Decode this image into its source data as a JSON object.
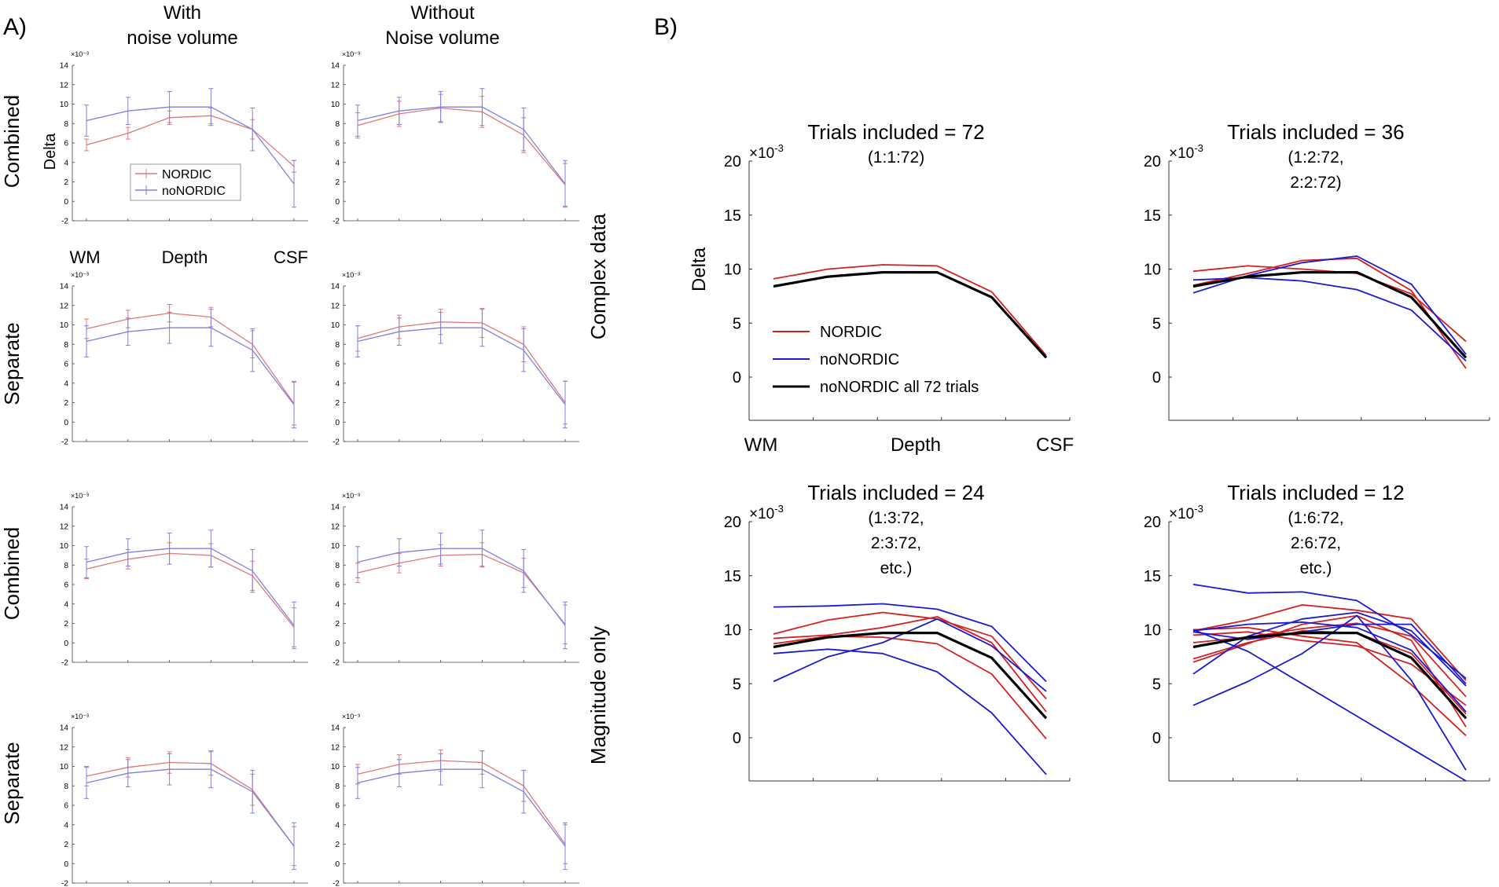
{
  "panel_a": {
    "label": "A)",
    "col_headers": [
      [
        "With",
        "noise volume"
      ],
      [
        "Without",
        "Noise volume"
      ]
    ],
    "row_labels": [
      "Combined",
      "Separate",
      "Combined",
      "Separate"
    ],
    "side_labels": [
      "Complex data",
      "Magnitude only"
    ],
    "ylabel": "Delta",
    "x_axis_labels": [
      "WM",
      "Depth",
      "CSF"
    ],
    "exponent_label": "×10⁻³",
    "legend": [
      "NORDIC",
      "noNORDIC"
    ]
  },
  "panel_b": {
    "label": "B)",
    "ylabel": "Delta",
    "x_axis_labels": [
      "WM",
      "Depth",
      "CSF"
    ],
    "exponent_label": "×10",
    "exponent_power": "-3",
    "legend": [
      "NORDIC",
      "noNORDIC",
      "noNORDIC all 72 trials"
    ]
  },
  "colors": {
    "nordic": "#d42020",
    "nonordic": "#1a1ad0",
    "reference": "#000000",
    "nordic_light": "#e07878",
    "nonordic_light": "#8080e0"
  },
  "chart_data": [
    {
      "type": "line",
      "panel": "A",
      "row": "Combined",
      "column": "With noise volume",
      "data": "Complex data",
      "x": [
        1,
        2,
        3,
        4,
        5,
        6
      ],
      "ylim": [
        -2,
        14
      ],
      "yticks": [
        -2,
        0,
        2,
        4,
        6,
        8,
        10,
        12,
        14
      ],
      "series": [
        {
          "name": "NORDIC",
          "values": [
            5.8,
            7.0,
            8.6,
            8.8,
            7.4,
            3.6
          ],
          "errors": [
            0.6,
            0.6,
            0.7,
            0.8,
            1.0,
            0.6
          ]
        },
        {
          "name": "noNORDIC",
          "values": [
            8.3,
            9.3,
            9.7,
            9.7,
            7.4,
            1.8
          ],
          "errors": [
            1.6,
            1.4,
            1.6,
            1.9,
            2.2,
            2.4
          ]
        }
      ]
    },
    {
      "type": "line",
      "panel": "A",
      "row": "Combined",
      "column": "Without Noise volume",
      "data": "Complex data",
      "x": [
        1,
        2,
        3,
        4,
        5,
        6
      ],
      "ylim": [
        -2,
        14
      ],
      "yticks": [
        -2,
        0,
        2,
        4,
        6,
        8,
        10,
        12,
        14
      ],
      "series": [
        {
          "name": "NORDIC",
          "values": [
            7.8,
            9.0,
            9.6,
            9.2,
            6.8,
            1.7
          ],
          "errors": [
            1.3,
            1.3,
            1.4,
            1.6,
            1.8,
            2.2
          ]
        },
        {
          "name": "noNORDIC",
          "values": [
            8.3,
            9.3,
            9.7,
            9.7,
            7.4,
            1.8
          ],
          "errors": [
            1.6,
            1.4,
            1.6,
            1.9,
            2.2,
            2.4
          ]
        }
      ]
    },
    {
      "type": "line",
      "panel": "A",
      "row": "Separate",
      "column": "With noise volume",
      "data": "Complex data",
      "x": [
        1,
        2,
        3,
        4,
        5,
        6
      ],
      "ylim": [
        -2,
        14
      ],
      "yticks": [
        -2,
        0,
        2,
        4,
        6,
        8,
        10,
        12,
        14
      ],
      "series": [
        {
          "name": "NORDIC",
          "values": [
            9.6,
            10.6,
            11.2,
            10.8,
            8.0,
            1.9
          ],
          "errors": [
            1.0,
            0.9,
            0.9,
            1.0,
            1.4,
            2.2
          ]
        },
        {
          "name": "noNORDIC",
          "values": [
            8.3,
            9.3,
            9.7,
            9.7,
            7.4,
            1.8
          ],
          "errors": [
            1.6,
            1.4,
            1.6,
            1.9,
            2.2,
            2.4
          ]
        }
      ]
    },
    {
      "type": "line",
      "panel": "A",
      "row": "Separate",
      "column": "Without Noise volume",
      "data": "Complex data",
      "x": [
        1,
        2,
        3,
        4,
        5,
        6
      ],
      "ylim": [
        -2,
        14
      ],
      "yticks": [
        -2,
        0,
        2,
        4,
        6,
        8,
        10,
        12,
        14
      ],
      "series": [
        {
          "name": "NORDIC",
          "values": [
            8.6,
            9.8,
            10.3,
            10.2,
            8.0,
            2.0
          ],
          "errors": [
            1.3,
            1.2,
            1.3,
            1.5,
            1.8,
            2.2
          ]
        },
        {
          "name": "noNORDIC",
          "values": [
            8.3,
            9.3,
            9.7,
            9.7,
            7.4,
            1.8
          ],
          "errors": [
            1.6,
            1.4,
            1.6,
            1.9,
            2.2,
            2.4
          ]
        }
      ]
    },
    {
      "type": "line",
      "panel": "A",
      "row": "Combined",
      "column": "With noise volume",
      "data": "Magnitude only",
      "x": [
        1,
        2,
        3,
        4,
        5,
        6
      ],
      "ylim": [
        -2,
        14
      ],
      "yticks": [
        -2,
        0,
        2,
        4,
        6,
        8,
        10,
        12,
        14
      ],
      "series": [
        {
          "name": "NORDIC",
          "values": [
            7.6,
            8.6,
            9.2,
            9.0,
            6.9,
            1.6
          ],
          "errors": [
            1.0,
            1.0,
            1.1,
            1.2,
            1.5,
            2.0
          ]
        },
        {
          "name": "noNORDIC",
          "values": [
            8.3,
            9.3,
            9.7,
            9.7,
            7.4,
            1.8
          ],
          "errors": [
            1.6,
            1.4,
            1.6,
            1.9,
            2.2,
            2.4
          ]
        }
      ]
    },
    {
      "type": "line",
      "panel": "A",
      "row": "Combined",
      "column": "Without Noise volume",
      "data": "Magnitude only",
      "x": [
        1,
        2,
        3,
        4,
        5,
        6
      ],
      "ylim": [
        -2,
        14
      ],
      "yticks": [
        -2,
        0,
        2,
        4,
        6,
        8,
        10,
        12,
        14
      ],
      "series": [
        {
          "name": "NORDIC",
          "values": [
            7.2,
            8.2,
            9.0,
            9.1,
            7.2,
            1.9
          ],
          "errors": [
            1.0,
            1.0,
            1.1,
            1.2,
            1.5,
            2.0
          ]
        },
        {
          "name": "noNORDIC",
          "values": [
            8.3,
            9.3,
            9.7,
            9.7,
            7.4,
            1.8
          ],
          "errors": [
            1.6,
            1.4,
            1.6,
            1.9,
            2.2,
            2.4
          ]
        }
      ]
    },
    {
      "type": "line",
      "panel": "A",
      "row": "Separate",
      "column": "With noise volume",
      "data": "Magnitude only",
      "x": [
        1,
        2,
        3,
        4,
        5,
        6
      ],
      "ylim": [
        -2,
        14
      ],
      "yticks": [
        -2,
        0,
        2,
        4,
        6,
        8,
        10,
        12,
        14
      ],
      "series": [
        {
          "name": "NORDIC",
          "values": [
            9.0,
            9.9,
            10.4,
            10.3,
            7.6,
            1.8
          ],
          "errors": [
            1.0,
            1.0,
            1.1,
            1.2,
            1.6,
            2.0
          ]
        },
        {
          "name": "noNORDIC",
          "values": [
            8.3,
            9.3,
            9.7,
            9.7,
            7.4,
            1.8
          ],
          "errors": [
            1.6,
            1.4,
            1.6,
            1.9,
            2.2,
            2.4
          ]
        }
      ]
    },
    {
      "type": "line",
      "panel": "A",
      "row": "Separate",
      "column": "Without Noise volume",
      "data": "Magnitude only",
      "x": [
        1,
        2,
        3,
        4,
        5,
        6
      ],
      "ylim": [
        -2,
        14
      ],
      "yticks": [
        -2,
        0,
        2,
        4,
        6,
        8,
        10,
        12,
        14
      ],
      "series": [
        {
          "name": "NORDIC",
          "values": [
            9.2,
            10.2,
            10.6,
            10.4,
            8.0,
            2.0
          ],
          "errors": [
            1.0,
            1.0,
            1.1,
            1.2,
            1.6,
            2.0
          ]
        },
        {
          "name": "noNORDIC",
          "values": [
            8.3,
            9.3,
            9.7,
            9.7,
            7.4,
            1.8
          ],
          "errors": [
            1.6,
            1.4,
            1.6,
            1.9,
            2.2,
            2.4
          ]
        }
      ]
    },
    {
      "type": "line",
      "panel": "B",
      "title": "Trials included = 72",
      "subtitle": [
        "(1:1:72)"
      ],
      "x": [
        1,
        2,
        3,
        4,
        5,
        6
      ],
      "ylim": [
        -4,
        20
      ],
      "yticks": [
        0,
        5,
        10,
        15,
        20
      ],
      "series": [
        {
          "name": "NORDIC",
          "color": "nordic",
          "values": [
            9.1,
            10.0,
            10.4,
            10.3,
            7.9,
            2.0
          ]
        },
        {
          "name": "noNORDIC all 72 trials",
          "color": "reference",
          "values": [
            8.4,
            9.3,
            9.7,
            9.7,
            7.4,
            1.8
          ]
        }
      ]
    },
    {
      "type": "line",
      "panel": "B",
      "title": "Trials included = 36",
      "subtitle": [
        "(1:2:72,",
        "2:2:72)"
      ],
      "x": [
        1,
        2,
        3,
        4,
        5,
        6
      ],
      "ylim": [
        -4,
        20
      ],
      "yticks": [
        0,
        5,
        10,
        15,
        20
      ],
      "series": [
        {
          "name": "NORDIC",
          "color": "nordic",
          "values": [
            9.8,
            10.3,
            10.0,
            9.6,
            7.7,
            3.3
          ]
        },
        {
          "name": "NORDIC",
          "color": "nordic",
          "values": [
            8.5,
            9.6,
            10.8,
            11.0,
            8.0,
            0.8
          ]
        },
        {
          "name": "noNORDIC",
          "color": "nonordic",
          "values": [
            9.0,
            9.2,
            8.9,
            8.1,
            6.2,
            1.5
          ]
        },
        {
          "name": "noNORDIC",
          "color": "nonordic",
          "values": [
            7.8,
            9.4,
            10.6,
            11.2,
            8.6,
            2.1
          ]
        },
        {
          "name": "noNORDIC all 72 trials",
          "color": "reference",
          "values": [
            8.4,
            9.3,
            9.7,
            9.7,
            7.4,
            1.8
          ]
        }
      ]
    },
    {
      "type": "line",
      "panel": "B",
      "title": "Trials included = 24",
      "subtitle": [
        "(1:3:72,",
        "2:3:72,",
        "etc.)"
      ],
      "x": [
        1,
        2,
        3,
        4,
        5,
        6
      ],
      "ylim": [
        -4,
        20
      ],
      "yticks": [
        0,
        5,
        10,
        15,
        20
      ],
      "series": [
        {
          "name": "NORDIC",
          "color": "nordic",
          "values": [
            9.6,
            10.9,
            11.6,
            11.0,
            9.4,
            3.6
          ]
        },
        {
          "name": "NORDIC",
          "color": "nordic",
          "values": [
            8.7,
            9.4,
            9.3,
            8.7,
            5.9,
            -0.1
          ]
        },
        {
          "name": "NORDIC",
          "color": "nordic",
          "values": [
            9.2,
            9.5,
            10.2,
            11.2,
            8.8,
            2.4
          ]
        },
        {
          "name": "noNORDIC",
          "color": "nonordic",
          "values": [
            12.1,
            12.2,
            12.4,
            11.9,
            10.3,
            5.2
          ]
        },
        {
          "name": "noNORDIC",
          "color": "nonordic",
          "values": [
            7.8,
            8.2,
            7.8,
            6.1,
            2.3,
            -3.4
          ]
        },
        {
          "name": "noNORDIC",
          "color": "nonordic",
          "values": [
            5.2,
            7.5,
            8.8,
            11.0,
            8.5,
            4.3
          ]
        },
        {
          "name": "noNORDIC all 72 trials",
          "color": "reference",
          "values": [
            8.4,
            9.3,
            9.7,
            9.7,
            7.4,
            1.8
          ]
        }
      ]
    },
    {
      "type": "line",
      "panel": "B",
      "title": "Trials included = 12",
      "subtitle": [
        "(1:6:72,",
        "2:6:72,",
        "etc.)"
      ],
      "x": [
        1,
        2,
        3,
        4,
        5,
        6
      ],
      "ylim": [
        -4,
        20
      ],
      "yticks": [
        0,
        5,
        10,
        15,
        20
      ],
      "series": [
        {
          "name": "NORDIC",
          "color": "nordic",
          "values": [
            9.9,
            10.9,
            12.3,
            11.8,
            11.0,
            5.3
          ]
        },
        {
          "name": "NORDIC",
          "color": "nordic",
          "values": [
            9.5,
            9.8,
            9.0,
            8.5,
            6.8,
            3.0
          ]
        },
        {
          "name": "NORDIC",
          "color": "nordic",
          "values": [
            8.8,
            9.3,
            10.1,
            10.6,
            9.4,
            3.8
          ]
        },
        {
          "name": "NORDIC",
          "color": "nordic",
          "values": [
            7.3,
            8.8,
            9.9,
            9.7,
            7.8,
            2.2
          ]
        },
        {
          "name": "NORDIC",
          "color": "nordic",
          "values": [
            7.0,
            8.7,
            10.5,
            11.3,
            9.0,
            1.0
          ]
        },
        {
          "name": "NORDIC",
          "color": "nordic",
          "values": [
            10.0,
            10.2,
            9.4,
            8.8,
            4.9,
            0.2
          ]
        },
        {
          "name": "noNORDIC",
          "color": "nonordic",
          "values": [
            14.2,
            13.4,
            13.5,
            12.7,
            9.5,
            5.5
          ]
        },
        {
          "name": "noNORDIC",
          "color": "nonordic",
          "values": [
            3.0,
            5.2,
            7.8,
            11.3,
            5.3,
            -3.0
          ]
        },
        {
          "name": "noNORDIC",
          "color": "nonordic",
          "values": [
            9.8,
            9.1,
            9.8,
            10.5,
            10.5,
            5.0
          ]
        },
        {
          "name": "noNORDIC",
          "color": "nonordic",
          "values": [
            5.9,
            9.4,
            11.0,
            11.6,
            9.9,
            4.8
          ]
        },
        {
          "name": "noNORDIC",
          "color": "nonordic",
          "values": [
            10.0,
            8.0,
            5.0,
            2.0,
            -1.0,
            -4.0
          ]
        },
        {
          "name": "noNORDIC",
          "color": "nonordic",
          "values": [
            9.9,
            10.5,
            10.7,
            10.2,
            8.1,
            2.4
          ]
        },
        {
          "name": "noNORDIC all 72 trials",
          "color": "reference",
          "values": [
            8.4,
            9.3,
            9.7,
            9.7,
            7.4,
            1.8
          ]
        }
      ]
    }
  ]
}
